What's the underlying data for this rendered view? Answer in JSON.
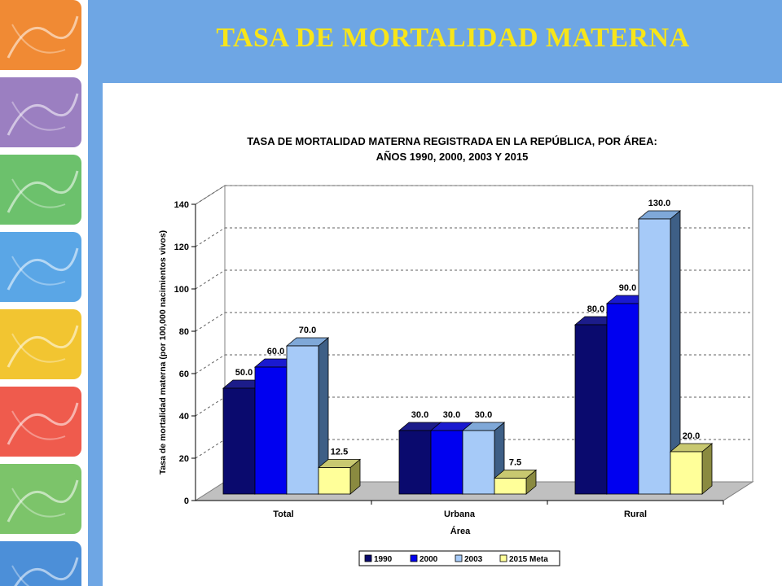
{
  "slide": {
    "title": "TASA DE MORTALIDAD MATERNA"
  },
  "side_tiles": [
    {
      "name": "tile-orange",
      "color": "#f08a34"
    },
    {
      "name": "tile-purple",
      "color": "#9b7fc1"
    },
    {
      "name": "tile-green",
      "color": "#6cc16c"
    },
    {
      "name": "tile-blue",
      "color": "#5aa6e6"
    },
    {
      "name": "tile-yellow",
      "color": "#f2c531"
    },
    {
      "name": "tile-red",
      "color": "#ef5b4d"
    },
    {
      "name": "tile-green-2",
      "color": "#7cc46a"
    },
    {
      "name": "tile-blue-2",
      "color": "#4c8fd8"
    }
  ],
  "chart_data": {
    "type": "bar",
    "title_line1": "TASA DE MORTALIDAD MATERNA REGISTRADA EN LA REPÚBLICA, POR ÁREA:",
    "title_line2": "AÑOS 1990, 2000, 2003 Y 2015",
    "xlabel": "Área",
    "ylabel": "Tasa de mortalidad materna (por 100,000 nacimientos vivos)",
    "ylim": [
      0,
      140
    ],
    "yticks": [
      0,
      20,
      40,
      60,
      80,
      100,
      120,
      140
    ],
    "grid": true,
    "legend_position": "bottom",
    "categories": [
      "Total",
      "Urbana",
      "Rural"
    ],
    "series": [
      {
        "name": "1990",
        "values": [
          50.0,
          30.0,
          80.0
        ],
        "color": "#0a0a6e",
        "side": "#050540",
        "top": "#1c1c8a"
      },
      {
        "name": "2000",
        "values": [
          60.0,
          30.0,
          90.0
        ],
        "color": "#0000f0",
        "side": "#00008a",
        "top": "#1a1ad0"
      },
      {
        "name": "2003",
        "values": [
          70.0,
          30.0,
          130.0
        ],
        "color": "#a6caf8",
        "side": "#3e5f86",
        "top": "#7fa8d8"
      },
      {
        "name": "2015 Meta",
        "values": [
          12.5,
          7.5,
          20.0
        ],
        "color": "#ffff99",
        "side": "#8a8a40",
        "top": "#c8c870"
      }
    ],
    "value_labels": [
      [
        "50.0",
        "30.0",
        "80.0"
      ],
      [
        "60.0",
        "30.0",
        "90.0"
      ],
      [
        "70.0",
        "30.0",
        "130.0"
      ],
      [
        "12.5",
        "7.5",
        "20.0"
      ]
    ]
  }
}
